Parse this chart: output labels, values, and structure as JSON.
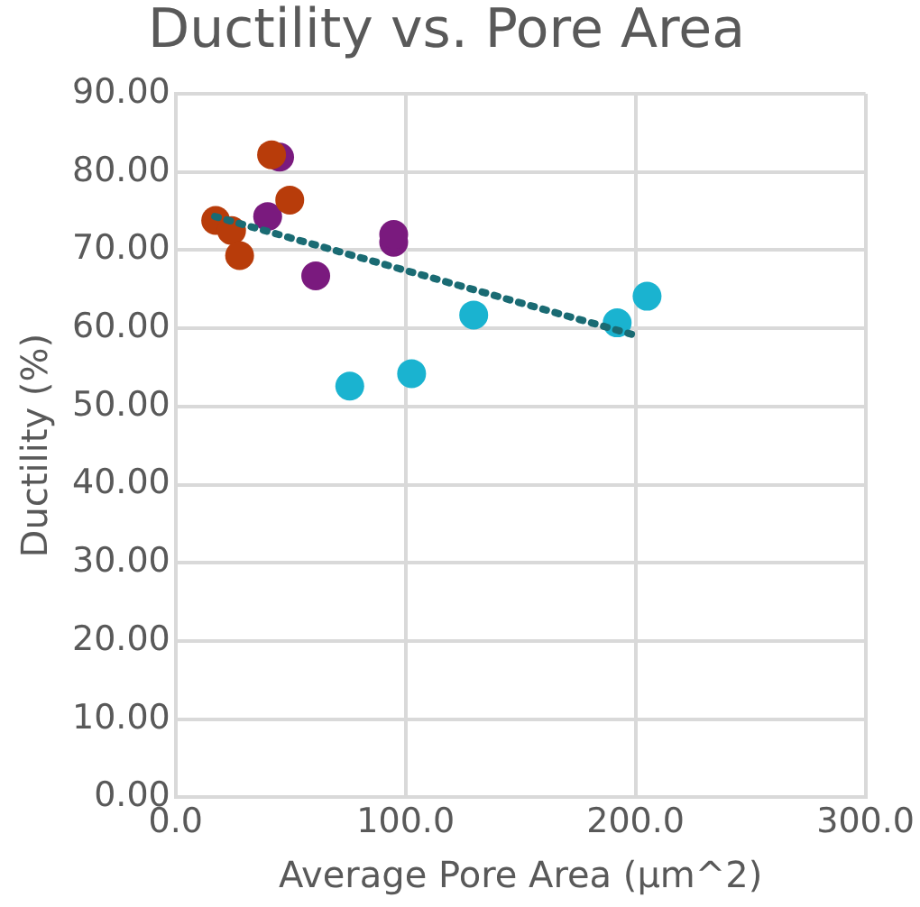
{
  "chart_data": {
    "type": "scatter",
    "title": "Ductility vs. Pore Area",
    "xlabel": "Average Pore Area (µm^2)",
    "ylabel": "Ductility (%)",
    "xlim": [
      0,
      300
    ],
    "xticks": [
      {
        "value": 0,
        "label": "0.0"
      },
      {
        "value": 100,
        "label": "100.0"
      },
      {
        "value": 200,
        "label": "200.0"
      },
      {
        "value": 300,
        "label": "300.0"
      }
    ],
    "ylim": [
      0,
      90
    ],
    "yticks": [
      {
        "value": 0,
        "label": "0.00"
      },
      {
        "value": 10,
        "label": "10.00"
      },
      {
        "value": 20,
        "label": "20.00"
      },
      {
        "value": 30,
        "label": "30.00"
      },
      {
        "value": 40,
        "label": "40.00"
      },
      {
        "value": 50,
        "label": "50.00"
      },
      {
        "value": 60,
        "label": "60.00"
      },
      {
        "value": 70,
        "label": "70.00"
      },
      {
        "value": 80,
        "label": "80.00"
      },
      {
        "value": 90,
        "label": "90.00"
      }
    ],
    "grid": true,
    "legend": false,
    "marker": "circle",
    "series": [
      {
        "color": "#7a1a7e",
        "x": [
          45.2,
          40,
          60.9,
          94.8,
          94.8
        ],
        "values": [
          81.9,
          74.3,
          66.7,
          71.0,
          72.0
        ]
      },
      {
        "color": "#1ab3d0",
        "x": [
          75.7,
          102.6,
          129.6,
          192,
          205
        ],
        "values": [
          52.6,
          54.2,
          61.7,
          60.7,
          64.1
        ]
      },
      {
        "color": "#b83c0a",
        "x": [
          17.4,
          24.3,
          27.8,
          41.7,
          49.6
        ],
        "values": [
          73.8,
          72.5,
          69.3,
          82.2,
          76.4
        ]
      },
      {
        "type": "line",
        "color": "#1a6b73",
        "line_style": "dotted",
        "marker": "none",
        "x": [
          17,
          200
        ],
        "values": [
          74.3,
          59.1
        ]
      }
    ]
  }
}
